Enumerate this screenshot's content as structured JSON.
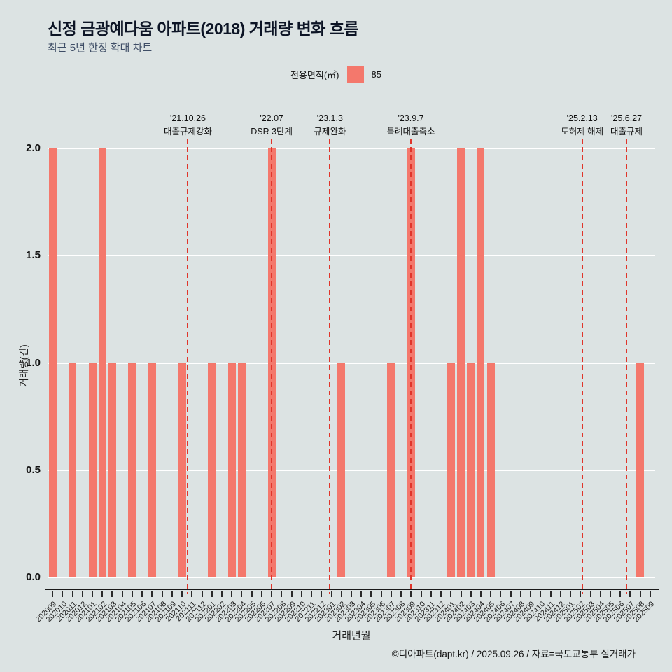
{
  "title": "신정 금광예다움 아파트(2018) 거래량 변화 흐름",
  "subtitle": "최근 5년 한정 확대 차트",
  "legend": {
    "label": "전용면적(㎡)",
    "value": "85",
    "color": "#f4786c"
  },
  "footer": "©디아파트(dapt.kr) / 2025.09.26 / 자료=국토교통부 실거래가",
  "chart_data": {
    "type": "bar",
    "title": "신정 금광예다움 아파트(2018) 거래량 변화 흐름",
    "xlabel": "거래년월",
    "ylabel": "거래량(건)",
    "ylim": [
      0,
      2
    ],
    "ytick_labels": [
      "0.0",
      "0.5",
      "1.0",
      "1.5",
      "2.0"
    ],
    "grid": "horizontal-white",
    "legend_position": "top-center",
    "bar_color": "#f4786c",
    "event_line_color": "#e0352b",
    "categories": [
      "202009",
      "202010",
      "202011",
      "202012",
      "202101",
      "202102",
      "202103",
      "202104",
      "202105",
      "202106",
      "202107",
      "202108",
      "202109",
      "202110",
      "202111",
      "202112",
      "202201",
      "202202",
      "202203",
      "202204",
      "202205",
      "202206",
      "202207",
      "202208",
      "202209",
      "202210",
      "202211",
      "202212",
      "202301",
      "202302",
      "202303",
      "202304",
      "202305",
      "202306",
      "202307",
      "202308",
      "202309",
      "202310",
      "202311",
      "202312",
      "202401",
      "202402",
      "202403",
      "202404",
      "202405",
      "202406",
      "202407",
      "202408",
      "202409",
      "202410",
      "202411",
      "202412",
      "202501",
      "202502",
      "202503",
      "202504",
      "202505",
      "202506",
      "202507",
      "202508",
      "202509"
    ],
    "values": [
      2,
      0,
      1,
      0,
      1,
      2,
      1,
      0,
      1,
      0,
      1,
      0,
      0,
      1,
      0,
      0,
      1,
      0,
      1,
      1,
      0,
      0,
      2,
      0,
      0,
      0,
      0,
      0,
      0,
      1,
      0,
      0,
      0,
      0,
      1,
      0,
      2,
      0,
      0,
      0,
      1,
      2,
      1,
      2,
      1,
      0,
      0,
      0,
      0,
      0,
      0,
      0,
      0,
      0,
      0,
      0,
      0,
      0,
      0,
      1,
      0
    ],
    "events": [
      {
        "date": "'21.10.26",
        "label": "대출규제강화",
        "month": "202110",
        "day": 26
      },
      {
        "date": "'22.07",
        "label": "DSR 3단계",
        "month": "202207",
        "day": null
      },
      {
        "date": "'23.1.3",
        "label": "규제완화",
        "month": "202301",
        "day": 3
      },
      {
        "date": "'23.9.7",
        "label": "특례대출축소",
        "month": "202309",
        "day": 7
      },
      {
        "date": "'25.2.13",
        "label": "토허제 해제",
        "month": "202502",
        "day": 13
      },
      {
        "date": "'25.6.27",
        "label": "대출규제",
        "month": "202506",
        "day": 27
      }
    ]
  }
}
